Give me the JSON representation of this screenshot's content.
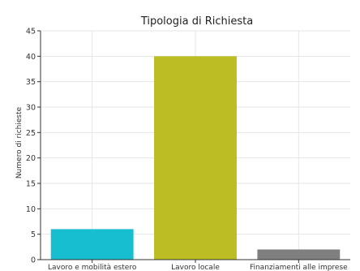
{
  "chart_data": {
    "type": "bar",
    "title": "Tipologia di Richiesta",
    "xlabel": "",
    "ylabel": "Numero di richieste",
    "categories": [
      "Lavoro e mobilità estero",
      "Lavoro locale",
      "Finanziamenti alle imprese"
    ],
    "values": [
      6,
      40,
      2
    ],
    "colors": [
      "#17becf",
      "#bcbd22",
      "#7f7f7f"
    ],
    "ylim": [
      0,
      45
    ],
    "yticks": [
      0,
      5,
      10,
      15,
      20,
      25,
      30,
      35,
      40,
      45
    ],
    "grid": true,
    "legend": false
  }
}
